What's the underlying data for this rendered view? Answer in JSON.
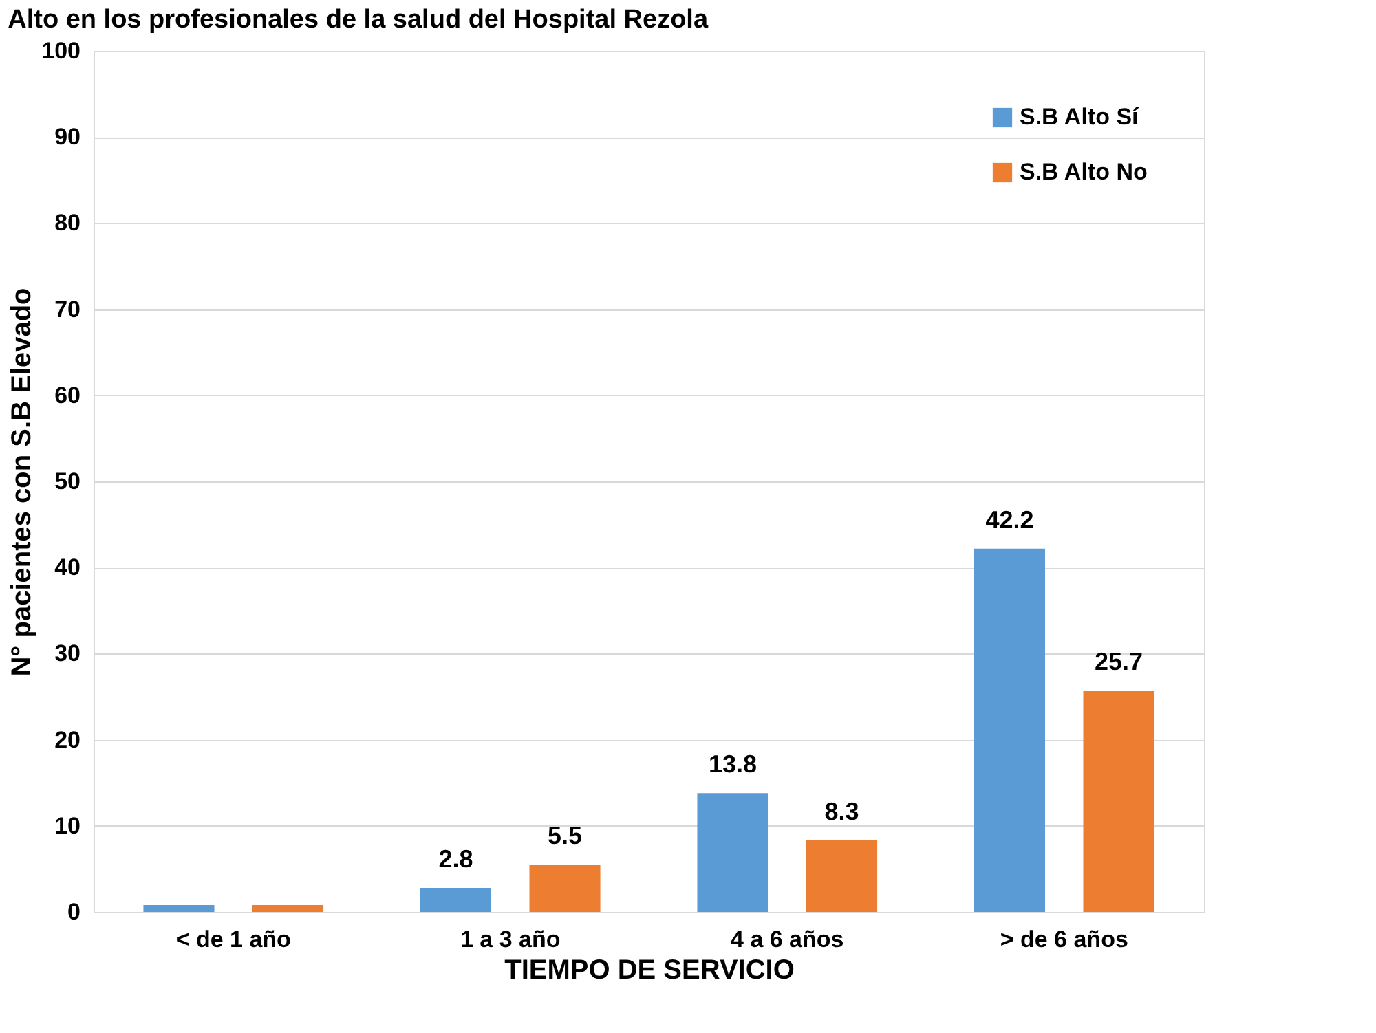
{
  "chart_data": {
    "type": "bar",
    "title": "Alto en los profesionales de la salud del Hospital Rezola",
    "xlabel": "TIEMPO DE SERVICIO",
    "ylabel": "N° pacientes con S.B Elevado",
    "categories": [
      "< de 1 año",
      "1 a 3 año",
      "4 a 6 años",
      "> de 6 años"
    ],
    "series": [
      {
        "name": "S.B Alto Sí",
        "color": "#5b9bd5",
        "values": [
          0.8,
          2.8,
          13.8,
          42.2
        ],
        "value_labels": [
          null,
          "2.8",
          "13.8",
          "42.2"
        ]
      },
      {
        "name": "S.B Alto No",
        "color": "#ed7d31",
        "values": [
          0.8,
          5.5,
          8.3,
          25.7
        ],
        "value_labels": [
          null,
          "5.5",
          "8.3",
          "25.7"
        ]
      }
    ],
    "ylim": [
      0,
      100
    ],
    "yticks": [
      0,
      10,
      20,
      30,
      40,
      50,
      60,
      70,
      80,
      90,
      100
    ],
    "grid": "y",
    "legend": "top right"
  }
}
